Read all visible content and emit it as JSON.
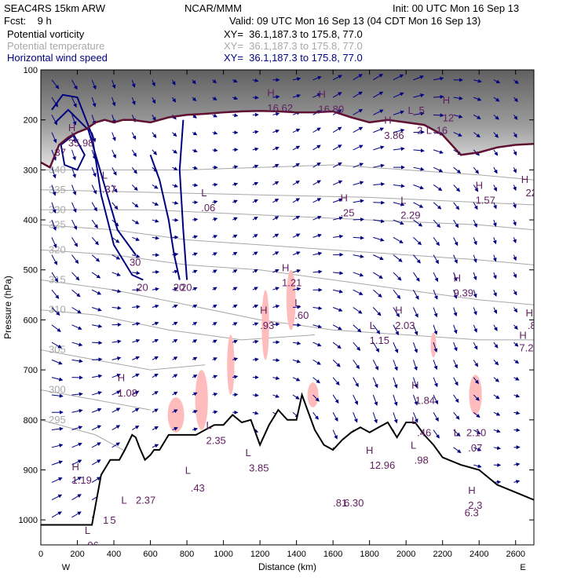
{
  "header": {
    "model": "SEAC4RS 15km ARW",
    "center": "NCAR/MMM",
    "init": "Init: 00 UTC Mon 16 Sep 13",
    "fcst": "Fcst:    9 h",
    "valid": "Valid: 09 UTC Mon 16 Sep 13 (04 CDT Mon 16 Sep 13)",
    "fields": [
      {
        "name": "Potential vorticity",
        "xy": "XY=  36.1,187.3 to 175.8, 77.0",
        "color": "#000000"
      },
      {
        "name": "Potential temperature",
        "xy": "XY=  36.1,187.3 to 175.8, 77.0",
        "color": "#a8a8a8"
      },
      {
        "name": "Horizontal wind speed",
        "xy": "XY=  36.1,187.3 to 175.8, 77.0",
        "color": "#000080"
      }
    ]
  },
  "chart_data": {
    "type": "cross-section",
    "xlabel": "Distance (km)",
    "ylabel": "Pressure (hPa)",
    "xlim": [
      0,
      2700
    ],
    "ylim": [
      1050,
      100
    ],
    "x_ticks": [
      0,
      200,
      400,
      600,
      800,
      1000,
      1200,
      1400,
      1600,
      1800,
      2000,
      2200,
      2400,
      2600
    ],
    "y_ticks": [
      100,
      200,
      300,
      400,
      500,
      600,
      700,
      800,
      900,
      1000
    ],
    "endpoints": {
      "left": "W",
      "right": "E"
    },
    "colors": {
      "pv_fill": "#ffbcbc",
      "wind": "#000080",
      "theta": "#a8a8a8",
      "tropopause": "#601030",
      "annotation": "#602060"
    },
    "terrain": [
      [
        0,
        1010
      ],
      [
        280,
        1010
      ],
      [
        330,
        910
      ],
      [
        380,
        880
      ],
      [
        430,
        880
      ],
      [
        460,
        860
      ],
      [
        500,
        830
      ],
      [
        520,
        835
      ],
      [
        540,
        855
      ],
      [
        570,
        880
      ],
      [
        600,
        870
      ],
      [
        620,
        860
      ],
      [
        650,
        860
      ],
      [
        700,
        830
      ],
      [
        750,
        830
      ],
      [
        800,
        830
      ],
      [
        850,
        830
      ],
      [
        900,
        820
      ],
      [
        950,
        810
      ],
      [
        1000,
        810
      ],
      [
        1050,
        790
      ],
      [
        1100,
        805
      ],
      [
        1150,
        800
      ],
      [
        1200,
        850
      ],
      [
        1250,
        810
      ],
      [
        1300,
        780
      ],
      [
        1350,
        800
      ],
      [
        1400,
        800
      ],
      [
        1430,
        750
      ],
      [
        1470,
        790
      ],
      [
        1500,
        820
      ],
      [
        1550,
        850
      ],
      [
        1600,
        860
      ],
      [
        1650,
        840
      ],
      [
        1700,
        825
      ],
      [
        1750,
        815
      ],
      [
        1800,
        825
      ],
      [
        1850,
        815
      ],
      [
        1900,
        805
      ],
      [
        1950,
        835
      ],
      [
        2000,
        805
      ],
      [
        2050,
        805
      ],
      [
        2100,
        830
      ],
      [
        2150,
        850
      ],
      [
        2200,
        875
      ],
      [
        2300,
        890
      ],
      [
        2400,
        900
      ],
      [
        2500,
        930
      ],
      [
        2600,
        945
      ],
      [
        2700,
        960
      ]
    ],
    "tropopause": [
      [
        0,
        285
      ],
      [
        50,
        295
      ],
      [
        100,
        250
      ],
      [
        150,
        235
      ],
      [
        200,
        225
      ],
      [
        250,
        218
      ],
      [
        300,
        205
      ],
      [
        350,
        200
      ],
      [
        400,
        205
      ],
      [
        450,
        200
      ],
      [
        500,
        200
      ],
      [
        600,
        205
      ],
      [
        700,
        195
      ],
      [
        800,
        190
      ],
      [
        900,
        188
      ],
      [
        1000,
        185
      ],
      [
        1100,
        183
      ],
      [
        1200,
        182
      ],
      [
        1300,
        183
      ],
      [
        1400,
        185
      ],
      [
        1500,
        185
      ],
      [
        1600,
        183
      ],
      [
        1700,
        195
      ],
      [
        1800,
        205
      ],
      [
        1900,
        200
      ],
      [
        2000,
        205
      ],
      [
        2100,
        210
      ],
      [
        2200,
        230
      ],
      [
        2300,
        270
      ],
      [
        2400,
        265
      ],
      [
        2500,
        255
      ],
      [
        2600,
        250
      ],
      [
        2700,
        248
      ]
    ],
    "theta_contours": [
      {
        "label": "295",
        "points": [
          [
            0,
            800
          ],
          [
            300,
            830
          ],
          [
            500,
            870
          ]
        ]
      },
      {
        "label": "300",
        "points": [
          [
            0,
            740
          ],
          [
            300,
            760
          ],
          [
            600,
            780
          ]
        ]
      },
      {
        "label": "305",
        "points": [
          [
            0,
            660
          ],
          [
            300,
            680
          ],
          [
            600,
            700
          ],
          [
            900,
            690
          ]
        ]
      },
      {
        "label": "310",
        "points": [
          [
            0,
            580
          ],
          [
            300,
            590
          ],
          [
            700,
            620
          ],
          [
            1100,
            640
          ],
          [
            1500,
            630
          ]
        ]
      },
      {
        "label": "315",
        "points": [
          [
            0,
            520
          ],
          [
            400,
            540
          ],
          [
            800,
            570
          ],
          [
            1200,
            600
          ],
          [
            1600,
            620
          ],
          [
            2000,
            630
          ],
          [
            2400,
            640
          ],
          [
            2700,
            640
          ]
        ]
      },
      {
        "label": "320",
        "points": [
          [
            0,
            460
          ],
          [
            400,
            470
          ],
          [
            800,
            490
          ],
          [
            1200,
            500
          ],
          [
            1600,
            520
          ],
          [
            2000,
            540
          ],
          [
            2400,
            560
          ],
          [
            2700,
            570
          ]
        ]
      },
      {
        "label": "325",
        "points": [
          [
            0,
            410
          ],
          [
            400,
            420
          ],
          [
            800,
            440
          ],
          [
            1200,
            450
          ],
          [
            1600,
            460
          ],
          [
            2000,
            470
          ],
          [
            2400,
            480
          ],
          [
            2700,
            490
          ]
        ]
      },
      {
        "label": "330",
        "points": [
          [
            0,
            380
          ],
          [
            600,
            380
          ],
          [
            1200,
            390
          ],
          [
            1800,
            400
          ],
          [
            2400,
            410
          ],
          [
            2700,
            420
          ]
        ]
      },
      {
        "label": "335",
        "points": [
          [
            0,
            340
          ],
          [
            600,
            345
          ],
          [
            1200,
            350
          ],
          [
            1800,
            355
          ],
          [
            2400,
            365
          ],
          [
            2700,
            370
          ]
        ]
      },
      {
        "label": "340",
        "points": [
          [
            0,
            300
          ],
          [
            800,
            300
          ],
          [
            1600,
            290
          ],
          [
            2400,
            310
          ],
          [
            2700,
            320
          ]
        ]
      }
    ],
    "wind_contours": [
      {
        "label": "20",
        "points": [
          [
            60,
            180
          ],
          [
            120,
            150
          ],
          [
            200,
            155
          ],
          [
            280,
            230
          ],
          [
            330,
            350
          ],
          [
            400,
            450
          ],
          [
            500,
            510
          ],
          [
            560,
            520
          ]
        ]
      },
      {
        "label": "30",
        "points": [
          [
            80,
            205
          ],
          [
            150,
            180
          ],
          [
            260,
            220
          ],
          [
            340,
            320
          ],
          [
            420,
            420
          ],
          [
            520,
            470
          ]
        ]
      },
      {
        "label": "37",
        "points": [
          [
            110,
            250
          ],
          [
            180,
            230
          ],
          [
            240,
            270
          ],
          [
            200,
            300
          ],
          [
            130,
            290
          ],
          [
            110,
            250
          ]
        ]
      },
      {
        "label": "20",
        "points": [
          [
            600,
            270
          ],
          [
            650,
            320
          ],
          [
            700,
            400
          ],
          [
            730,
            470
          ],
          [
            760,
            520
          ]
        ]
      },
      {
        "label": "20",
        "points": [
          [
            780,
            200
          ],
          [
            760,
            300
          ],
          [
            780,
            420
          ],
          [
            800,
            520
          ]
        ]
      }
    ],
    "pv_blobs": [
      {
        "x": 1040,
        "p": 690,
        "w": 40,
        "h": 120
      },
      {
        "x": 1230,
        "p": 610,
        "w": 40,
        "h": 140
      },
      {
        "x": 1370,
        "p": 560,
        "w": 50,
        "h": 120
      },
      {
        "x": 1490,
        "p": 750,
        "w": 60,
        "h": 50
      },
      {
        "x": 880,
        "p": 760,
        "w": 70,
        "h": 120
      },
      {
        "x": 740,
        "p": 790,
        "w": 90,
        "h": 70
      },
      {
        "x": 2380,
        "p": 750,
        "w": 70,
        "h": 80
      },
      {
        "x": 2150,
        "p": 650,
        "w": 30,
        "h": 50
      }
    ],
    "annotations": [
      {
        "x": 150,
        "p": 215,
        "text": "H"
      },
      {
        "x": 150,
        "p": 245,
        "text": "35.98"
      },
      {
        "x": 335,
        "p": 310,
        "text": "L"
      },
      {
        "x": 335,
        "p": 338,
        "text": ".37"
      },
      {
        "x": 878,
        "p": 345,
        "text": "L"
      },
      {
        "x": 878,
        "p": 375,
        "text": ".06"
      },
      {
        "x": 1240,
        "p": 145,
        "text": "H"
      },
      {
        "x": 1240,
        "p": 175,
        "text": "16.62"
      },
      {
        "x": 1520,
        "p": 148,
        "text": "H"
      },
      {
        "x": 1520,
        "p": 178,
        "text": "16.80"
      },
      {
        "x": 1880,
        "p": 200,
        "text": "H"
      },
      {
        "x": 1880,
        "p": 230,
        "text": "3.86"
      },
      {
        "x": 2010,
        "p": 180,
        "text": "L"
      },
      {
        "x": 2070,
        "p": 180,
        "text": "5"
      },
      {
        "x": 2060,
        "p": 220,
        "text": "2"
      },
      {
        "x": 2110,
        "p": 220,
        "text": "L"
      },
      {
        "x": 2150,
        "p": 220,
        "text": ".16"
      },
      {
        "x": 2200,
        "p": 160,
        "text": "H"
      },
      {
        "x": 2200,
        "p": 195,
        "text": "12"
      },
      {
        "x": 1640,
        "p": 355,
        "text": "H"
      },
      {
        "x": 1640,
        "p": 385,
        "text": ".25"
      },
      {
        "x": 1970,
        "p": 360,
        "text": "L"
      },
      {
        "x": 1970,
        "p": 390,
        "text": "2.29"
      },
      {
        "x": 2380,
        "p": 330,
        "text": "H"
      },
      {
        "x": 2380,
        "p": 360,
        "text": "1.57"
      },
      {
        "x": 2630,
        "p": 318,
        "text": "H"
      },
      {
        "x": 2655,
        "p": 345,
        "text": "22"
      },
      {
        "x": 1320,
        "p": 495,
        "text": "H"
      },
      {
        "x": 1320,
        "p": 525,
        "text": "1.21"
      },
      {
        "x": 1390,
        "p": 565,
        "text": "L"
      },
      {
        "x": 1390,
        "p": 590,
        "text": ".60"
      },
      {
        "x": 1200,
        "p": 580,
        "text": "H"
      },
      {
        "x": 1200,
        "p": 610,
        "text": ".93"
      },
      {
        "x": 1800,
        "p": 610,
        "text": "L"
      },
      {
        "x": 1800,
        "p": 640,
        "text": "1.15"
      },
      {
        "x": 1940,
        "p": 580,
        "text": "H"
      },
      {
        "x": 1940,
        "p": 610,
        "text": "2.03"
      },
      {
        "x": 2260,
        "p": 515,
        "text": "H"
      },
      {
        "x": 2260,
        "p": 545,
        "text": "9.39"
      },
      {
        "x": 2655,
        "p": 585,
        "text": "H"
      },
      {
        "x": 2665,
        "p": 610,
        "text": ".88"
      },
      {
        "x": 2620,
        "p": 630,
        "text": "H"
      },
      {
        "x": 2620,
        "p": 655,
        "text": "7.29"
      },
      {
        "x": 420,
        "p": 715,
        "text": "H"
      },
      {
        "x": 420,
        "p": 745,
        "text": "1.08"
      },
      {
        "x": 2030,
        "p": 730,
        "text": "H"
      },
      {
        "x": 2050,
        "p": 760,
        "text": "1.84"
      },
      {
        "x": 2030,
        "p": 800,
        "text": "L"
      },
      {
        "x": 2060,
        "p": 825,
        "text": ".46"
      },
      {
        "x": 2025,
        "p": 850,
        "text": "L"
      },
      {
        "x": 2045,
        "p": 880,
        "text": ".98"
      },
      {
        "x": 2260,
        "p": 825,
        "text": "L"
      },
      {
        "x": 2330,
        "p": 825,
        "text": "2.10"
      },
      {
        "x": 2340,
        "p": 855,
        "text": ".07"
      },
      {
        "x": 905,
        "p": 810,
        "text": "L"
      },
      {
        "x": 905,
        "p": 840,
        "text": "2.35"
      },
      {
        "x": 1120,
        "p": 865,
        "text": "L"
      },
      {
        "x": 1140,
        "p": 895,
        "text": "3.85"
      },
      {
        "x": 790,
        "p": 900,
        "text": "L"
      },
      {
        "x": 820,
        "p": 935,
        "text": ".43"
      },
      {
        "x": 1780,
        "p": 860,
        "text": "H"
      },
      {
        "x": 1800,
        "p": 890,
        "text": "12.96"
      },
      {
        "x": 1600,
        "p": 965,
        "text": ".81"
      },
      {
        "x": 1660,
        "p": 965,
        "text": "6.30"
      },
      {
        "x": 2340,
        "p": 940,
        "text": "H"
      },
      {
        "x": 2340,
        "p": 970,
        "text": "2.3"
      },
      {
        "x": 2320,
        "p": 985,
        "text": "6.3"
      },
      {
        "x": 170,
        "p": 893,
        "text": "H"
      },
      {
        "x": 170,
        "p": 920,
        "text": "1.19"
      },
      {
        "x": 440,
        "p": 960,
        "text": "L"
      },
      {
        "x": 520,
        "p": 960,
        "text": "2.37"
      },
      {
        "x": 240,
        "p": 1020,
        "text": "L"
      },
      {
        "x": 240,
        "p": 1050,
        "text": ".06"
      },
      {
        "x": 340,
        "p": 1000,
        "text": "1"
      },
      {
        "x": 380,
        "p": 1000,
        "text": "5"
      }
    ]
  }
}
